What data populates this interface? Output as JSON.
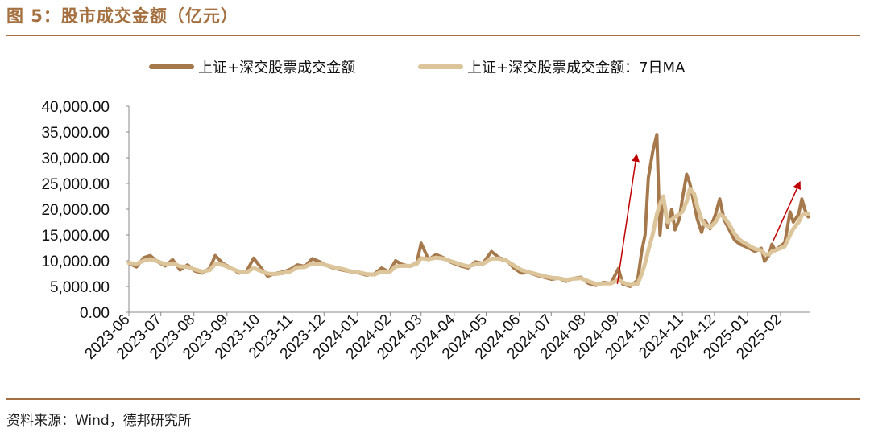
{
  "header": {
    "title": "图 5：股市成交金额（亿元）"
  },
  "footer": {
    "source": "资料来源：Wind，德邦研究所"
  },
  "colors": {
    "accent": "#a5703f",
    "series_daily": "#a6794c",
    "series_ma": "#ddc59b",
    "arrow": "#c00000"
  },
  "chart_data": {
    "type": "line",
    "title": "",
    "xlabel": "",
    "ylabel": "",
    "ylim": [
      0,
      40000
    ],
    "yticks": [
      "0.00",
      "5,000.00",
      "10,000.00",
      "15,000.00",
      "20,000.00",
      "25,000.00",
      "30,000.00",
      "35,000.00",
      "40,000.00"
    ],
    "xticks": [
      "2023-06",
      "2023-07",
      "2023-08",
      "2023-09",
      "2023-10",
      "2023-11",
      "2023-12",
      "2024-01",
      "2024-02",
      "2024-03",
      "2024-04",
      "2024-05",
      "2024-06",
      "2024-07",
      "2024-08",
      "2024-09",
      "2024-10",
      "2024-11",
      "2024-12",
      "2025-01",
      "2025-02"
    ],
    "legend_position": "top",
    "grid": false,
    "series": [
      {
        "name": "上证+深交股票成交金额",
        "points": [
          [
            "2023-06-01",
            9500
          ],
          [
            "2023-06-08",
            8800
          ],
          [
            "2023-06-15",
            10600
          ],
          [
            "2023-06-21",
            11000
          ],
          [
            "2023-06-28",
            9800
          ],
          [
            "2023-07-05",
            9000
          ],
          [
            "2023-07-12",
            10200
          ],
          [
            "2023-07-19",
            8200
          ],
          [
            "2023-07-26",
            9200
          ],
          [
            "2023-08-02",
            8000
          ],
          [
            "2023-08-09",
            7600
          ],
          [
            "2023-08-16",
            8600
          ],
          [
            "2023-08-21",
            11000
          ],
          [
            "2023-08-28",
            9500
          ],
          [
            "2023-09-05",
            8600
          ],
          [
            "2023-09-12",
            7600
          ],
          [
            "2023-09-19",
            7800
          ],
          [
            "2023-09-26",
            10500
          ],
          [
            "2023-10-09",
            7000
          ],
          [
            "2023-10-16",
            7500
          ],
          [
            "2023-10-23",
            7800
          ],
          [
            "2023-10-30",
            8300
          ],
          [
            "2023-11-06",
            9200
          ],
          [
            "2023-11-13",
            8900
          ],
          [
            "2023-11-20",
            10400
          ],
          [
            "2023-11-27",
            9800
          ],
          [
            "2023-12-04",
            9000
          ],
          [
            "2023-12-11",
            8500
          ],
          [
            "2023-12-18",
            8200
          ],
          [
            "2023-12-25",
            7900
          ],
          [
            "2024-01-03",
            7600
          ],
          [
            "2024-01-10",
            7200
          ],
          [
            "2024-01-17",
            7400
          ],
          [
            "2024-01-24",
            8600
          ],
          [
            "2024-01-31",
            7800
          ],
          [
            "2024-02-06",
            10000
          ],
          [
            "2024-02-12",
            9300
          ],
          [
            "2024-02-20",
            8900
          ],
          [
            "2024-02-26",
            9700
          ],
          [
            "2024-03-01",
            13400
          ],
          [
            "2024-03-08",
            10200
          ],
          [
            "2024-03-15",
            11200
          ],
          [
            "2024-03-22",
            10600
          ],
          [
            "2024-03-29",
            9700
          ],
          [
            "2024-04-07",
            9000
          ],
          [
            "2024-04-14",
            8600
          ],
          [
            "2024-04-21",
            9800
          ],
          [
            "2024-04-28",
            9500
          ],
          [
            "2024-05-06",
            11800
          ],
          [
            "2024-05-13",
            10600
          ],
          [
            "2024-05-20",
            10100
          ],
          [
            "2024-05-27",
            8600
          ],
          [
            "2024-06-03",
            7600
          ],
          [
            "2024-06-10",
            7700
          ],
          [
            "2024-06-17",
            7200
          ],
          [
            "2024-06-24",
            6800
          ],
          [
            "2024-07-01",
            6400
          ],
          [
            "2024-07-08",
            6600
          ],
          [
            "2024-07-15",
            6000
          ],
          [
            "2024-07-22",
            6600
          ],
          [
            "2024-07-29",
            6800
          ],
          [
            "2024-08-05",
            5600
          ],
          [
            "2024-08-12",
            5200
          ],
          [
            "2024-08-19",
            5800
          ],
          [
            "2024-08-26",
            5600
          ],
          [
            "2024-09-02",
            8500
          ],
          [
            "2024-09-06",
            5500
          ],
          [
            "2024-09-13",
            5000
          ],
          [
            "2024-09-20",
            6200
          ],
          [
            "2024-09-24",
            12000
          ],
          [
            "2024-09-27",
            15000
          ],
          [
            "2024-09-30",
            26000
          ],
          [
            "2024-10-04",
            31000
          ],
          [
            "2024-10-08",
            34500
          ],
          [
            "2024-10-11",
            15000
          ],
          [
            "2024-10-14",
            22500
          ],
          [
            "2024-10-18",
            16500
          ],
          [
            "2024-10-22",
            20000
          ],
          [
            "2024-10-25",
            16000
          ],
          [
            "2024-10-29",
            18000
          ],
          [
            "2024-11-01",
            22000
          ],
          [
            "2024-11-05",
            26800
          ],
          [
            "2024-11-08",
            25000
          ],
          [
            "2024-11-12",
            21000
          ],
          [
            "2024-11-15",
            18000
          ],
          [
            "2024-11-19",
            15500
          ],
          [
            "2024-11-22",
            17800
          ],
          [
            "2024-11-27",
            16200
          ],
          [
            "2024-12-02",
            19000
          ],
          [
            "2024-12-06",
            22000
          ],
          [
            "2024-12-10",
            18000
          ],
          [
            "2024-12-15",
            16000
          ],
          [
            "2024-12-20",
            14000
          ],
          [
            "2024-12-25",
            13200
          ],
          [
            "2025-01-02",
            12500
          ],
          [
            "2025-01-08",
            11800
          ],
          [
            "2025-01-14",
            12400
          ],
          [
            "2025-01-17",
            9900
          ],
          [
            "2025-01-21",
            11000
          ],
          [
            "2025-01-24",
            13200
          ],
          [
            "2025-01-27",
            12000
          ],
          [
            "2025-02-05",
            13500
          ],
          [
            "2025-02-10",
            19500
          ],
          [
            "2025-02-13",
            17500
          ],
          [
            "2025-02-18",
            19000
          ],
          [
            "2025-02-21",
            22000
          ],
          [
            "2025-02-24",
            19800
          ],
          [
            "2025-02-27",
            18500
          ]
        ]
      },
      {
        "name": "上证+深交股票成交金额：7日MA",
        "points": [
          [
            "2023-06-01",
            9600
          ],
          [
            "2023-06-08",
            9400
          ],
          [
            "2023-06-15",
            10000
          ],
          [
            "2023-06-21",
            10300
          ],
          [
            "2023-06-28",
            9900
          ],
          [
            "2023-07-05",
            9300
          ],
          [
            "2023-07-12",
            9500
          ],
          [
            "2023-07-19",
            8900
          ],
          [
            "2023-07-26",
            8800
          ],
          [
            "2023-08-02",
            8300
          ],
          [
            "2023-08-09",
            7900
          ],
          [
            "2023-08-16",
            8200
          ],
          [
            "2023-08-21",
            9400
          ],
          [
            "2023-08-28",
            9200
          ],
          [
            "2023-09-05",
            8500
          ],
          [
            "2023-09-12",
            7900
          ],
          [
            "2023-09-19",
            7700
          ],
          [
            "2023-09-26",
            8600
          ],
          [
            "2023-10-09",
            7500
          ],
          [
            "2023-10-16",
            7400
          ],
          [
            "2023-10-23",
            7600
          ],
          [
            "2023-10-30",
            7900
          ],
          [
            "2023-11-06",
            8700
          ],
          [
            "2023-11-13",
            8800
          ],
          [
            "2023-11-20",
            9500
          ],
          [
            "2023-11-27",
            9400
          ],
          [
            "2023-12-04",
            9100
          ],
          [
            "2023-12-11",
            8700
          ],
          [
            "2023-12-18",
            8400
          ],
          [
            "2023-12-25",
            8000
          ],
          [
            "2024-01-03",
            7700
          ],
          [
            "2024-01-10",
            7400
          ],
          [
            "2024-01-17",
            7300
          ],
          [
            "2024-01-24",
            7900
          ],
          [
            "2024-01-31",
            7700
          ],
          [
            "2024-02-06",
            8900
          ],
          [
            "2024-02-12",
            9000
          ],
          [
            "2024-02-20",
            9000
          ],
          [
            "2024-02-26",
            9400
          ],
          [
            "2024-03-01",
            10500
          ],
          [
            "2024-03-08",
            10300
          ],
          [
            "2024-03-15",
            10600
          ],
          [
            "2024-03-22",
            10400
          ],
          [
            "2024-03-29",
            9900
          ],
          [
            "2024-04-07",
            9300
          ],
          [
            "2024-04-14",
            8900
          ],
          [
            "2024-04-21",
            9300
          ],
          [
            "2024-04-28",
            9400
          ],
          [
            "2024-05-06",
            10400
          ],
          [
            "2024-05-13",
            10400
          ],
          [
            "2024-05-20",
            10000
          ],
          [
            "2024-05-27",
            9100
          ],
          [
            "2024-06-03",
            8200
          ],
          [
            "2024-06-10",
            7800
          ],
          [
            "2024-06-17",
            7400
          ],
          [
            "2024-06-24",
            7000
          ],
          [
            "2024-07-01",
            6700
          ],
          [
            "2024-07-08",
            6600
          ],
          [
            "2024-07-15",
            6300
          ],
          [
            "2024-07-22",
            6500
          ],
          [
            "2024-07-29",
            6600
          ],
          [
            "2024-08-05",
            6000
          ],
          [
            "2024-08-12",
            5500
          ],
          [
            "2024-08-19",
            5600
          ],
          [
            "2024-08-26",
            5600
          ],
          [
            "2024-09-02",
            6300
          ],
          [
            "2024-09-06",
            5800
          ],
          [
            "2024-09-13",
            5300
          ],
          [
            "2024-09-20",
            5500
          ],
          [
            "2024-09-24",
            7500
          ],
          [
            "2024-09-27",
            9500
          ],
          [
            "2024-09-30",
            12000
          ],
          [
            "2024-10-04",
            15000
          ],
          [
            "2024-10-08",
            19000
          ],
          [
            "2024-10-11",
            21000
          ],
          [
            "2024-10-14",
            22500
          ],
          [
            "2024-10-18",
            17500
          ],
          [
            "2024-10-22",
            18000
          ],
          [
            "2024-10-25",
            18500
          ],
          [
            "2024-10-29",
            19000
          ],
          [
            "2024-11-01",
            19500
          ],
          [
            "2024-11-05",
            21500
          ],
          [
            "2024-11-08",
            24000
          ],
          [
            "2024-11-12",
            23000
          ],
          [
            "2024-11-15",
            20500
          ],
          [
            "2024-11-19",
            18000
          ],
          [
            "2024-11-22",
            17000
          ],
          [
            "2024-11-27",
            16500
          ],
          [
            "2024-12-02",
            17500
          ],
          [
            "2024-12-06",
            19000
          ],
          [
            "2024-12-10",
            18500
          ],
          [
            "2024-12-15",
            17000
          ],
          [
            "2024-12-20",
            15200
          ],
          [
            "2024-12-25",
            14000
          ],
          [
            "2025-01-02",
            13000
          ],
          [
            "2025-01-08",
            12300
          ],
          [
            "2025-01-14",
            12000
          ],
          [
            "2025-01-17",
            11300
          ],
          [
            "2025-01-21",
            11200
          ],
          [
            "2025-01-24",
            11800
          ],
          [
            "2025-01-27",
            12000
          ],
          [
            "2025-02-05",
            12800
          ],
          [
            "2025-02-10",
            15000
          ],
          [
            "2025-02-13",
            16200
          ],
          [
            "2025-02-18",
            17500
          ],
          [
            "2025-02-21",
            18800
          ],
          [
            "2025-02-24",
            19200
          ],
          [
            "2025-02-27",
            19000
          ]
        ]
      }
    ],
    "annotations": [
      {
        "type": "arrow",
        "from": [
          "2024-09-01",
          5500
        ],
        "to": [
          "2024-09-19",
          30500
        ]
      },
      {
        "type": "arrow",
        "from": [
          "2025-01-25",
          13800
        ],
        "to": [
          "2025-02-19",
          25200
        ]
      }
    ]
  }
}
